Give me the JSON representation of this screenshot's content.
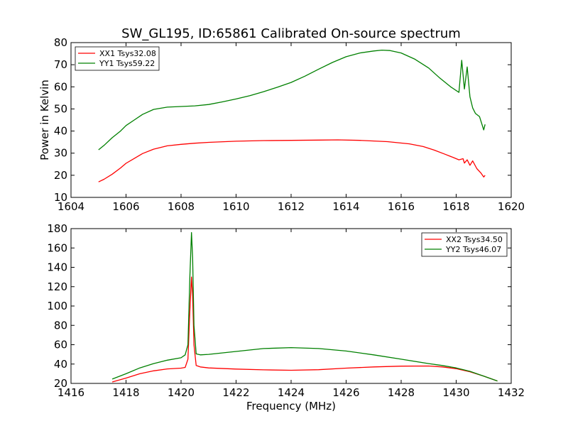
{
  "figure": {
    "title": "SW_GL195, ID:65861 Calibrated On-source spectrum"
  },
  "chart_data": [
    {
      "type": "line",
      "title": "SW_GL195, ID:65861 Calibrated On-source spectrum",
      "xlabel": "",
      "ylabel": "Power in Kelvin",
      "xlim": [
        1604,
        1620
      ],
      "ylim": [
        10,
        80
      ],
      "xticks": [
        1604,
        1606,
        1608,
        1610,
        1612,
        1614,
        1616,
        1618,
        1620
      ],
      "yticks": [
        10,
        20,
        30,
        40,
        50,
        60,
        70,
        80
      ],
      "grid": false,
      "legend": "top-left",
      "series": [
        {
          "name": "XX1 Tsys32.08",
          "color": "#ff0000",
          "x": [
            1605.0,
            1605.2,
            1605.5,
            1605.8,
            1606.0,
            1606.3,
            1606.6,
            1607.0,
            1607.5,
            1608.0,
            1608.5,
            1609.0,
            1610.0,
            1611.0,
            1612.0,
            1613.0,
            1613.7,
            1614.5,
            1615.5,
            1616.3,
            1616.8,
            1617.2,
            1617.6,
            1617.9,
            1618.1,
            1618.25,
            1618.3,
            1618.4,
            1618.5,
            1618.6,
            1618.75,
            1618.9,
            1619.0,
            1619.05
          ],
          "y": [
            17,
            18.2,
            20.5,
            23.3,
            25.4,
            27.6,
            29.8,
            31.8,
            33.3,
            34.0,
            34.5,
            34.9,
            35.4,
            35.7,
            35.8,
            35.9,
            36.0,
            35.8,
            35.2,
            34.2,
            33.0,
            31.4,
            29.5,
            28.0,
            27.0,
            27.5,
            25.5,
            27.0,
            24.5,
            26.5,
            23.0,
            21.0,
            19.2,
            20.0
          ]
        },
        {
          "name": "YY1 Tsys59.22",
          "color": "#008000",
          "x": [
            1605.0,
            1605.2,
            1605.5,
            1605.8,
            1606.0,
            1606.3,
            1606.6,
            1607.0,
            1607.5,
            1608.0,
            1608.5,
            1609.0,
            1609.5,
            1610.0,
            1610.5,
            1611.0,
            1611.5,
            1612.0,
            1612.5,
            1613.0,
            1613.5,
            1614.0,
            1614.5,
            1615.0,
            1615.3,
            1615.6,
            1616.0,
            1616.5,
            1617.0,
            1617.4,
            1617.8,
            1618.1,
            1618.2,
            1618.3,
            1618.4,
            1618.5,
            1618.6,
            1618.7,
            1618.85,
            1619.0,
            1619.05
          ],
          "y": [
            31.5,
            33.5,
            37.0,
            40.0,
            42.5,
            45.0,
            47.5,
            49.8,
            50.8,
            51.1,
            51.4,
            52.0,
            53.2,
            54.5,
            56.0,
            57.8,
            59.8,
            62.0,
            64.8,
            68.0,
            71.0,
            73.6,
            75.3,
            76.2,
            76.6,
            76.4,
            75.3,
            72.5,
            68.5,
            64.0,
            60.0,
            57.5,
            72.0,
            59.0,
            69.0,
            55.5,
            50.5,
            48.0,
            46.5,
            40.5,
            43.0
          ]
        }
      ]
    },
    {
      "type": "line",
      "title": "",
      "xlabel": "Frequency (MHz)",
      "ylabel": "",
      "xlim": [
        1416,
        1432
      ],
      "ylim": [
        20,
        180
      ],
      "xticks": [
        1416,
        1418,
        1420,
        1422,
        1424,
        1426,
        1428,
        1430,
        1432
      ],
      "yticks": [
        20,
        40,
        60,
        80,
        100,
        120,
        140,
        160,
        180
      ],
      "grid": false,
      "legend": "top-right",
      "series": [
        {
          "name": "XX2 Tsys34.50",
          "color": "#ff0000",
          "x": [
            1417.5,
            1418.0,
            1418.5,
            1419.0,
            1419.5,
            1420.0,
            1420.15,
            1420.25,
            1420.32,
            1420.38,
            1420.42,
            1420.47,
            1420.55,
            1420.7,
            1421.0,
            1422.0,
            1423.0,
            1424.0,
            1425.0,
            1426.0,
            1427.0,
            1428.0,
            1429.0,
            1429.5,
            1430.0,
            1430.5,
            1431.0,
            1431.5
          ],
          "y": [
            21.5,
            25.5,
            30.0,
            33.0,
            35.0,
            35.8,
            36.5,
            45.0,
            95.0,
            130.0,
            110.0,
            60.0,
            38.5,
            37.0,
            36.0,
            34.8,
            34.0,
            33.6,
            34.2,
            35.8,
            37.0,
            37.8,
            38.0,
            37.0,
            35.2,
            32.0,
            27.5,
            22.5
          ]
        },
        {
          "name": "YY2 Tsys46.07",
          "color": "#008000",
          "x": [
            1417.5,
            1418.0,
            1418.5,
            1419.0,
            1419.5,
            1420.0,
            1420.15,
            1420.25,
            1420.32,
            1420.38,
            1420.42,
            1420.47,
            1420.55,
            1420.7,
            1421.0,
            1422.0,
            1423.0,
            1424.0,
            1425.0,
            1426.0,
            1427.0,
            1428.0,
            1429.0,
            1429.5,
            1430.0,
            1430.5,
            1431.0,
            1431.5
          ],
          "y": [
            24.5,
            30.0,
            36.0,
            40.5,
            44.0,
            46.5,
            49.5,
            60.0,
            130.0,
            176.0,
            150.0,
            80.0,
            50.5,
            49.5,
            50.0,
            53.0,
            56.0,
            57.0,
            56.0,
            53.5,
            49.5,
            45.0,
            40.5,
            38.5,
            36.0,
            32.5,
            27.5,
            22.5
          ]
        }
      ]
    }
  ]
}
